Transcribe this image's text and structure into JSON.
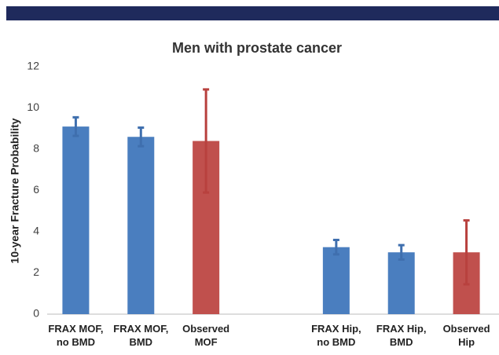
{
  "chart_data": {
    "type": "bar",
    "title": "Men with prostate cancer",
    "y_label": "10-year Fracture Probability",
    "categories": [
      "FRAX MOF, no BMD",
      "FRAX MOF, BMD",
      "Observed MOF",
      null,
      "FRAX Hip, no BMD",
      "FRAX Hip, BMD",
      "Observed Hip"
    ],
    "values": [
      9.1,
      8.6,
      8.4,
      null,
      3.25,
      3.0,
      3.0
    ],
    "errors": [
      0.45,
      0.45,
      2.5,
      null,
      0.35,
      0.35,
      1.55
    ],
    "colors": [
      "#4a7ebf",
      "#4a7ebf",
      "#c0504d",
      null,
      "#4a7ebf",
      "#4a7ebf",
      "#c0504d"
    ],
    "ylim": [
      0,
      12
    ],
    "yticks": [
      0,
      2,
      4,
      6,
      8,
      10,
      12
    ],
    "grid": false
  }
}
